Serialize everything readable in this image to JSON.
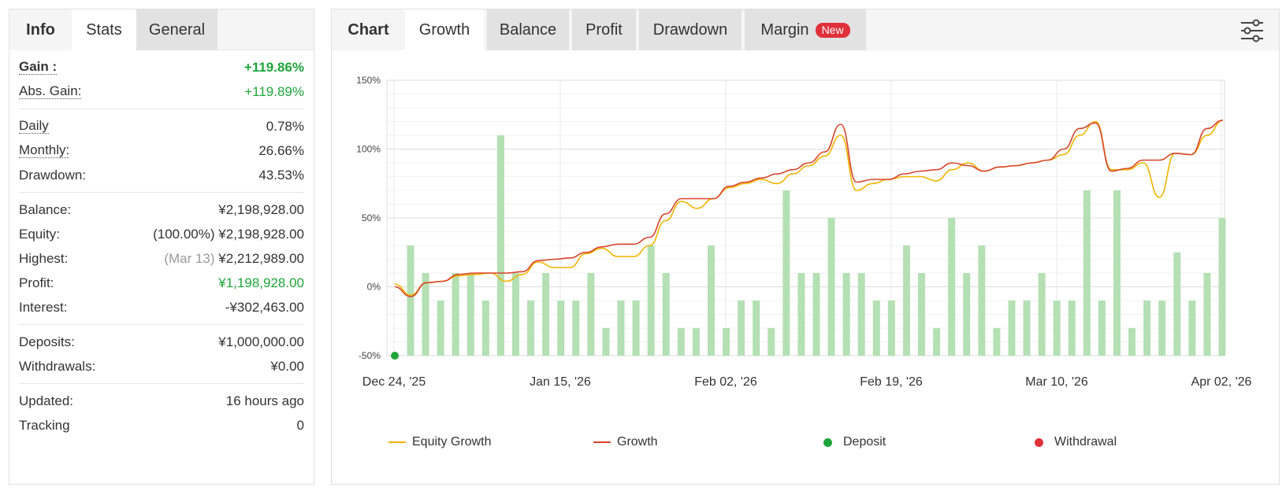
{
  "left_panel": {
    "tabs": [
      {
        "label": "Info"
      },
      {
        "label": "Stats"
      },
      {
        "label": "General"
      }
    ],
    "gain": {
      "label": "Gain :",
      "value": "+119.86%"
    },
    "abs_gain": {
      "label": "Abs. Gain:",
      "value": "+119.89%"
    },
    "daily": {
      "label": "Daily",
      "value": "0.78%"
    },
    "monthly": {
      "label": "Monthly:",
      "value": "26.66%"
    },
    "drawdown": {
      "label": "Drawdown:",
      "value": "43.53%"
    },
    "balance": {
      "label": "Balance:",
      "value": "¥2,198,928.00"
    },
    "equity": {
      "label": "Equity:",
      "prefix": "(100.00%)",
      "value": "¥2,198,928.00"
    },
    "highest": {
      "label": "Highest:",
      "prefix": "(Mar 13)",
      "value": "¥2,212,989.00"
    },
    "profit": {
      "label": "Profit:",
      "value": "¥1,198,928.00"
    },
    "interest": {
      "label": "Interest:",
      "value": "-¥302,463.00"
    },
    "deposits": {
      "label": "Deposits:",
      "value": "¥1,000,000.00"
    },
    "withdrawals": {
      "label": "Withdrawals:",
      "value": "¥0.00"
    },
    "updated": {
      "label": "Updated:",
      "value": "16 hours ago"
    },
    "tracking": {
      "label": "Tracking",
      "value": "0"
    }
  },
  "right_panel": {
    "chart_label": "Chart",
    "tabs": [
      {
        "label": "Growth"
      },
      {
        "label": "Balance"
      },
      {
        "label": "Profit"
      },
      {
        "label": "Drawdown"
      },
      {
        "label": "Margin",
        "badge": "New"
      }
    ],
    "settings_icon": "sliders-icon"
  },
  "colors": {
    "equity_growth": "#f0b400",
    "growth": "#d9442c",
    "deposit": "#1ea53a",
    "withdrawal": "#e0303a",
    "bars": "#b4e0b4",
    "positive": "#1ea53a"
  },
  "chart_data": {
    "type": "line",
    "y_ticks": [
      "150%",
      "100%",
      "50%",
      "0%",
      "-50%"
    ],
    "x_ticks": [
      "Dec 24, '25",
      "Jan 15, '26",
      "Feb 02, '26",
      "Feb 19, '26",
      "Mar 10, '26",
      "Apr 02, '26"
    ],
    "ylim": [
      -50,
      150
    ],
    "grid": true,
    "legend_position": "bottom",
    "series": [
      {
        "name": "Equity Growth",
        "values": [
          2,
          -6,
          3,
          4,
          8,
          9,
          10,
          4,
          9,
          18,
          14,
          14,
          24,
          28,
          22,
          22,
          30,
          48,
          62,
          57,
          64,
          72,
          75,
          78,
          75,
          82,
          88,
          95,
          110,
          70,
          75,
          78,
          80,
          80,
          77,
          85,
          90,
          84,
          87,
          88,
          90,
          92,
          96,
          110,
          120,
          85,
          85,
          90,
          65,
          97,
          96,
          110,
          121
        ]
      },
      {
        "name": "Growth",
        "values": [
          0,
          -7,
          3,
          4,
          9,
          10,
          10,
          10,
          11,
          19,
          20,
          21,
          25,
          29,
          31,
          31,
          36,
          53,
          64,
          64,
          64,
          73,
          76,
          79,
          82,
          85,
          90,
          98,
          118,
          76,
          78,
          78,
          82,
          84,
          85,
          90,
          88,
          84,
          87,
          88,
          90,
          92,
          100,
          115,
          119,
          84,
          86,
          92,
          92,
          97,
          96,
          115,
          121
        ]
      }
    ],
    "bar_series": {
      "name": "Daily",
      "values": [
        30,
        10,
        -10,
        10,
        10,
        -10,
        110,
        10,
        -10,
        10,
        -10,
        -10,
        10,
        -30,
        -10,
        -10,
        30,
        10,
        -30,
        -30,
        30,
        -30,
        -10,
        -10,
        -30,
        70,
        10,
        10,
        50,
        10,
        10,
        -10,
        -10,
        30,
        10,
        -30,
        50,
        10,
        30,
        -30,
        -10,
        -10,
        10,
        -10,
        -10,
        70,
        -10,
        70,
        -30,
        -10,
        -10,
        25,
        -10,
        10,
        50
      ]
    },
    "deposit_points": [
      {
        "x": "Dec 24, '25",
        "y": -50
      }
    ],
    "legend": [
      {
        "label": "Equity Growth"
      },
      {
        "label": "Growth"
      },
      {
        "label": "Deposit"
      },
      {
        "label": "Withdrawal"
      }
    ]
  }
}
